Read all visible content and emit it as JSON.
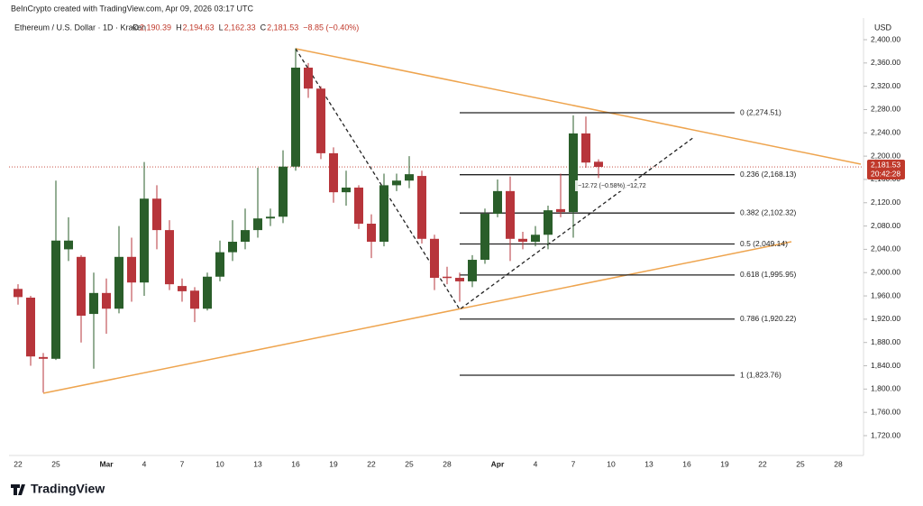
{
  "credit": "BeInCrypto created with TradingView.com, Apr 09, 2026 03:17 UTC",
  "logo": "TradingView",
  "chart_data": {
    "type": "candlestick",
    "title": "Ethereum / U.S. Dollar · 1D · Kraken",
    "ohlc_labels": [
      "O",
      "2,190.39",
      "H",
      "2,194.63",
      "L",
      "2,162.33",
      "C",
      "2,181.53"
    ],
    "change_label": "−8.85 (−0.40%)",
    "currency": "USD",
    "last_price": 2181.53,
    "last_price_label": "2,181.53",
    "countdown": "20:42:28",
    "measure_label": "−12.72 (−0.58%) −12,72",
    "up_color": "#2a5e2a",
    "down_color": "#b7353b",
    "trend_color": "#eea44e",
    "categories": [
      "22",
      null,
      null,
      "25",
      null,
      null,
      null,
      "Mar",
      null,
      null,
      "4",
      null,
      null,
      "7",
      null,
      null,
      "10",
      null,
      null,
      "13",
      null,
      null,
      "16",
      null,
      null,
      "19",
      null,
      null,
      "22",
      null,
      null,
      "25",
      null,
      null,
      "28",
      null,
      null,
      null,
      "Apr",
      null,
      null,
      "4",
      null,
      null,
      "7",
      null,
      null,
      "10",
      null,
      null,
      "13",
      null,
      null,
      "16",
      null,
      null,
      "19",
      null,
      null,
      "22",
      null,
      null,
      "25",
      null,
      null,
      "28"
    ],
    "open": [
      1972,
      1957,
      1855,
      1852,
      2040,
      2027,
      1929,
      1965,
      1938,
      2027,
      1983,
      2127,
      2073,
      1977,
      1969,
      1938,
      1993,
      2035,
      2053,
      2073,
      2093,
      2096,
      2182,
      2352,
      2316,
      2205,
      2138,
      2146,
      2084,
      2053,
      2150,
      2158,
      2166,
      2058,
      1993,
      1991,
      1985,
      2022,
      2101,
      2140,
      2058,
      2053,
      2065,
      2109,
      2104,
      2239,
      2190.39,
      null,
      null,
      null,
      null,
      null,
      null,
      null,
      null,
      null,
      null,
      null,
      null,
      null,
      null,
      null,
      null,
      null,
      null,
      null
    ],
    "high": [
      1980,
      1960,
      1862,
      2158,
      2095,
      2030,
      2000,
      1990,
      2080,
      2060,
      2190,
      2150,
      2090,
      1990,
      1975,
      2000,
      2055,
      2090,
      2110,
      2180,
      2110,
      2210,
      2385,
      2360,
      2320,
      2215,
      2175,
      2150,
      2100,
      2170,
      2170,
      2200,
      2175,
      2065,
      2010,
      2000,
      2030,
      2110,
      2160,
      2165,
      2070,
      2080,
      2115,
      2170,
      2270,
      2268,
      2194.63,
      null,
      null,
      null,
      null,
      null,
      null,
      null,
      null,
      null,
      null,
      null,
      null,
      null,
      null,
      null,
      null,
      null,
      null,
      null
    ],
    "low": [
      1945,
      1840,
      1794,
      1850,
      2020,
      1880,
      1835,
      1895,
      1930,
      1950,
      1960,
      2040,
      1970,
      1950,
      1915,
      1935,
      1985,
      2020,
      2040,
      2060,
      2080,
      2085,
      2175,
      2300,
      2195,
      2120,
      2115,
      2075,
      2025,
      2045,
      2140,
      2145,
      2050,
      1970,
      1980,
      1950,
      1975,
      2015,
      2095,
      2020,
      2040,
      2045,
      2040,
      2095,
      2060,
      2180,
      2162.33,
      null,
      null,
      null,
      null,
      null,
      null,
      null,
      null,
      null,
      null,
      null,
      null,
      null,
      null,
      null,
      null,
      null,
      null,
      null
    ],
    "close": [
      1958,
      1856,
      1852,
      2055,
      2055,
      1926,
      1965,
      1938,
      2027,
      1983,
      2127,
      2073,
      1980,
      1968,
      1938,
      1993,
      2035,
      2053,
      2073,
      2093,
      2096,
      2182,
      2352,
      2316,
      2205,
      2138,
      2146,
      2084,
      2053,
      2150,
      2158,
      2169,
      2058,
      1991,
      1991,
      1985,
      2022,
      2101,
      2140,
      2058,
      2053,
      2065,
      2107,
      2104,
      2239,
      2189,
      2181.53,
      null,
      null,
      null,
      null,
      null,
      null,
      null,
      null,
      null,
      null,
      null,
      null,
      null,
      null,
      null,
      null,
      null,
      null,
      null
    ],
    "fib_levels": [
      {
        "value": 2274.51,
        "label": "0 (2,274.51)"
      },
      {
        "value": 2168.13,
        "label": "0.236 (2,168.13)"
      },
      {
        "value": 2102.32,
        "label": "0.382 (2,102.32)"
      },
      {
        "value": 2049.14,
        "label": "0.5 (2,049.14)"
      },
      {
        "value": 1995.95,
        "label": "0.618 (1,995.95)"
      },
      {
        "value": 1920.22,
        "label": "0.786 (1,920.22)"
      },
      {
        "value": 1823.76,
        "label": "1 (1,823.76)"
      }
    ],
    "ylim": [
      1685,
      2407
    ],
    "yticks": [
      {
        "value": 2400,
        "label": "2,400.00"
      },
      {
        "value": 2360,
        "label": "2,360.00"
      },
      {
        "value": 2320,
        "label": "2,320.00"
      },
      {
        "value": 2280,
        "label": "2,280.00"
      },
      {
        "value": 2240,
        "label": "2,240.00"
      },
      {
        "value": 2200,
        "label": "2,200.00"
      },
      {
        "value": 2160,
        "label": "2,160.00"
      },
      {
        "value": 2120,
        "label": "2,120.00"
      },
      {
        "value": 2080,
        "label": "2,080.00"
      },
      {
        "value": 2040,
        "label": "2,040.00"
      },
      {
        "value": 2000,
        "label": "2,000.00"
      },
      {
        "value": 1960,
        "label": "1,960.00"
      },
      {
        "value": 1920,
        "label": "1,920.00"
      },
      {
        "value": 1880,
        "label": "1,880.00"
      },
      {
        "value": 1840,
        "label": "1,840.00"
      },
      {
        "value": 1800,
        "label": "1,800.00"
      },
      {
        "value": 1760,
        "label": "1,760.00"
      },
      {
        "value": 1720,
        "label": "1,720.00"
      }
    ]
  }
}
